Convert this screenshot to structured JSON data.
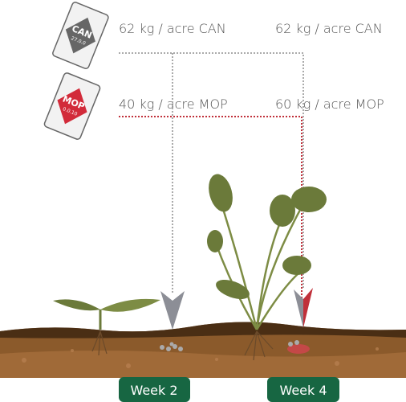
{
  "bags": [
    {
      "name": "CAN",
      "grade": "27.0.0"
    },
    {
      "name": "MOP",
      "grade": "0.0.10"
    }
  ],
  "applications": [
    {
      "can": "62 kg / acre CAN",
      "mop": "40 kg / acre MOP",
      "week": "Week 2"
    },
    {
      "can": "62 kg / acre CAN",
      "mop": "60 kg / acre MOP",
      "week": "Week 4"
    }
  ]
}
